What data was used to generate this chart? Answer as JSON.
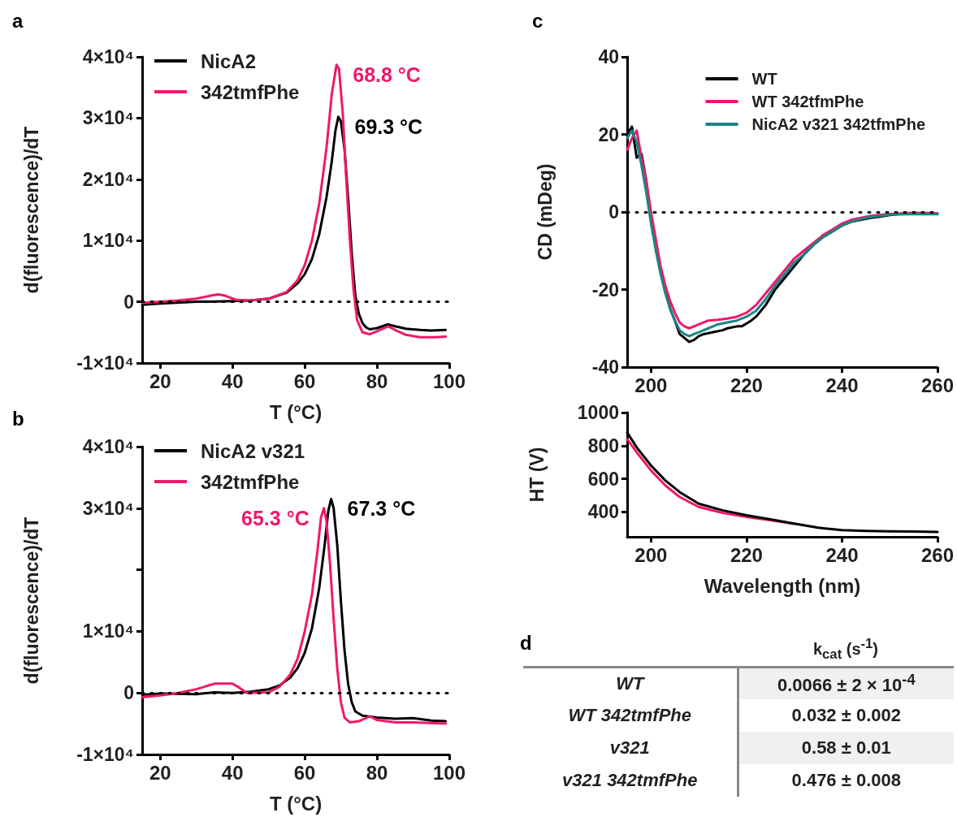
{
  "chart_data": [
    {
      "type": "line",
      "title": "a",
      "xlabel": "T (°C)",
      "ylabel": "d(fluorescence)/dT",
      "xlim": [
        15,
        100
      ],
      "xticks": [
        20,
        40,
        60,
        80,
        100
      ],
      "ylim": [
        -10000,
        40000
      ],
      "yticks": [
        {
          "value": -10000,
          "label": "-1×10⁴"
        },
        0,
        {
          "value": 10000,
          "label": "1×10⁴"
        },
        {
          "value": 20000,
          "label": "2×10⁴"
        },
        {
          "value": 30000,
          "label": "3×10⁴"
        },
        {
          "value": 40000,
          "label": "4×10⁴"
        }
      ],
      "legend": "top left",
      "series": [
        {
          "name": "NicA2",
          "color": "#000000",
          "x": [
            15,
            20,
            30,
            40,
            45,
            50,
            55,
            58,
            60,
            62,
            64,
            66,
            67.5,
            68.5,
            69.3,
            70,
            71,
            72,
            73,
            74,
            75,
            76,
            77,
            78,
            80,
            83,
            85,
            88,
            92,
            95,
            99
          ],
          "values": [
            -500,
            -300,
            0,
            100,
            200,
            500,
            1500,
            3000,
            4500,
            7000,
            11000,
            17000,
            23000,
            28000,
            30200,
            29500,
            25000,
            17000,
            8000,
            1000,
            -2000,
            -3500,
            -4200,
            -4500,
            -4300,
            -3700,
            -4000,
            -4400,
            -4600,
            -4700,
            -4600
          ]
        },
        {
          "name": "342tmfPhe",
          "color": "#f0186a",
          "x": [
            15,
            20,
            25,
            30,
            34,
            36,
            38,
            41,
            45,
            50,
            55,
            58,
            60,
            62,
            64,
            66,
            67.5,
            68.8,
            69.5,
            70.5,
            71.5,
            72.5,
            73.5,
            74.5,
            76,
            78,
            80,
            83,
            85,
            88,
            92,
            96,
            99
          ],
          "values": [
            -200,
            0,
            200,
            500,
            1000,
            1200,
            1000,
            300,
            200,
            500,
            1600,
            3500,
            6000,
            10000,
            16000,
            25000,
            34000,
            38700,
            38000,
            31000,
            20000,
            10000,
            2000,
            -3000,
            -5000,
            -5300,
            -4800,
            -4000,
            -4600,
            -5400,
            -5800,
            -5800,
            -5700
          ]
        }
      ],
      "ref_lines": [
        {
          "axis": "y",
          "value": 0,
          "color": "#000000",
          "line_style": "dotted"
        }
      ],
      "annotations": [
        {
          "text": "69.3 °C",
          "x": 69.3,
          "y": 30200
        },
        {
          "text": "68.8 °C",
          "x": 68.8,
          "y": 38700
        }
      ]
    },
    {
      "type": "line",
      "title": "b",
      "xlabel": "T (°C)",
      "ylabel": "d(fluorescence)/dT",
      "xlim": [
        15,
        100
      ],
      "xticks": [
        20,
        40,
        60,
        80,
        100
      ],
      "ylim": [
        -10000,
        40000
      ],
      "yticks": [
        {
          "value": -10000,
          "label": "-1×10⁴"
        },
        0,
        {
          "value": 10000,
          "label": "1×10⁴"
        },
        {
          "value": 20000,
          "label": null
        },
        {
          "value": 30000,
          "label": "3×10⁴"
        },
        {
          "value": 40000,
          "label": "4×10⁴"
        }
      ],
      "legend": "top left",
      "series": [
        {
          "name": "NicA2 v321",
          "color": "#000000",
          "x": [
            15,
            20,
            30,
            35,
            40,
            45,
            50,
            53,
            56,
            58,
            60,
            62,
            64,
            65.5,
            66.5,
            67.3,
            68,
            69,
            70,
            71,
            72,
            73,
            74,
            76,
            80,
            85,
            90,
            95,
            99
          ],
          "values": [
            -300,
            -100,
            -200,
            100,
            0,
            200,
            600,
            1200,
            2500,
            4000,
            6500,
            10500,
            17000,
            24000,
            29500,
            31500,
            30000,
            24000,
            15000,
            7000,
            1500,
            -1500,
            -3000,
            -3700,
            -4000,
            -4200,
            -4100,
            -4500,
            -4600
          ]
        },
        {
          "name": "342tmfPhe",
          "color": "#f0186a",
          "x": [
            15,
            20,
            25,
            30,
            35,
            40,
            42,
            44,
            50,
            53,
            56,
            58,
            60,
            62,
            63.5,
            64.5,
            65.3,
            66,
            67,
            68,
            69,
            70,
            71,
            72.5,
            75,
            78,
            80,
            85,
            90,
            99
          ],
          "values": [
            -700,
            -400,
            0,
            600,
            1500,
            1500,
            800,
            0,
            100,
            1000,
            3000,
            5500,
            10000,
            16000,
            23000,
            28500,
            30000,
            28000,
            21000,
            12000,
            4000,
            -1500,
            -4000,
            -4800,
            -4600,
            -3800,
            -4400,
            -4800,
            -4800,
            -5000
          ]
        }
      ],
      "ref_lines": [
        {
          "axis": "y",
          "value": 0,
          "color": "#000000",
          "line_style": "dotted"
        }
      ],
      "annotations": [
        {
          "text": "67.3 °C",
          "x": 67.3,
          "y": 31500
        },
        {
          "text": "65.3 °C",
          "x": 65.3,
          "y": 30000
        }
      ]
    },
    {
      "type": "line",
      "title": "c",
      "ylabel": "CD (mDeg)",
      "xlim": [
        195,
        260
      ],
      "xticks": [
        200,
        220,
        240,
        260
      ],
      "ylim": [
        -40,
        40
      ],
      "yticks": [
        -40,
        -20,
        0,
        20,
        40
      ],
      "legend": "top right",
      "series": [
        {
          "name": "WT",
          "color": "#000000",
          "x": [
            195,
            196,
            197,
            198,
            199,
            200,
            201,
            202,
            203,
            204,
            205,
            206,
            207,
            208,
            209,
            210,
            211,
            213,
            215,
            216,
            218,
            219,
            221,
            222,
            224,
            226,
            228,
            230,
            232,
            234,
            236,
            238,
            240,
            242,
            244,
            246,
            248,
            250,
            252,
            255,
            258,
            260
          ],
          "values": [
            20,
            22,
            14,
            15,
            8,
            -2,
            -8,
            -15,
            -20,
            -25,
            -28,
            -31.5,
            -32.5,
            -33.5,
            -33,
            -32,
            -31.5,
            -31,
            -30.5,
            -30,
            -29.5,
            -29.5,
            -28,
            -27,
            -24,
            -20,
            -17,
            -14,
            -11,
            -8.5,
            -6.5,
            -5,
            -3.5,
            -2.5,
            -2,
            -1.5,
            -1.2,
            -0.8,
            -0.5,
            -0.3,
            -0.3,
            -0.5
          ]
        },
        {
          "name": "WT 342tfmPhe",
          "color": "#f0186a",
          "x": [
            195,
            196,
            197,
            198,
            199,
            200,
            201,
            202,
            203,
            204,
            205,
            206,
            207,
            208,
            209,
            210,
            212,
            214,
            216,
            218,
            220,
            222,
            224,
            226,
            228,
            230,
            232,
            234,
            236,
            238,
            240,
            242,
            244,
            246,
            250,
            255,
            260
          ],
          "values": [
            16,
            19,
            21,
            14,
            8,
            0,
            -7,
            -14,
            -19,
            -23,
            -26,
            -28.5,
            -29.5,
            -30,
            -29.5,
            -29,
            -28,
            -27.8,
            -27.5,
            -27,
            -26,
            -24,
            -21,
            -18,
            -15,
            -12,
            -10,
            -8,
            -6,
            -4.5,
            -3,
            -2,
            -1.5,
            -1,
            -0.5,
            -0.2,
            -0.3
          ]
        },
        {
          "name": "NicA2 v321 342tfmPhe",
          "color": "#1a8585",
          "x": [
            195,
            196,
            197,
            198,
            199,
            200,
            201,
            202,
            203,
            204,
            205,
            206,
            207,
            208,
            209,
            210,
            212,
            214,
            216,
            218,
            220,
            222,
            224,
            226,
            228,
            230,
            232,
            234,
            236,
            238,
            240,
            242,
            244,
            246,
            250,
            255,
            260
          ],
          "values": [
            19,
            21,
            18,
            12,
            5,
            -3,
            -10,
            -16,
            -21,
            -25,
            -28,
            -30.5,
            -31.5,
            -32,
            -31.5,
            -31,
            -30,
            -29,
            -28.5,
            -28,
            -27,
            -25.5,
            -22.5,
            -19,
            -16,
            -13,
            -11,
            -8.5,
            -6.5,
            -5,
            -3.5,
            -2.5,
            -1.8,
            -1.3,
            -0.7,
            -0.5,
            -0.6
          ]
        }
      ],
      "ref_lines": [
        {
          "axis": "y",
          "value": 0,
          "color": "#000000",
          "line_style": "dotted"
        }
      ]
    },
    {
      "type": "line",
      "xlabel": "Wavelength (nm)",
      "ylabel": "HT (V)",
      "xlim": [
        195,
        260
      ],
      "xticks": [
        200,
        220,
        240,
        260
      ],
      "ylim": [
        250,
        1000
      ],
      "yticks": [
        400,
        600,
        800,
        1000
      ],
      "series": [
        {
          "color": "#f0186a",
          "x": [
            195,
            197,
            200,
            203,
            206,
            210,
            215,
            220,
            225,
            230
          ],
          "values": [
            840,
            760,
            650,
            560,
            490,
            430,
            395,
            370,
            350,
            328
          ]
        },
        {
          "color": "#000000",
          "x": [
            195,
            197,
            200,
            203,
            206,
            210,
            215,
            220,
            225,
            230,
            235,
            240,
            245,
            250,
            255,
            260
          ],
          "values": [
            880,
            790,
            680,
            590,
            520,
            450,
            410,
            380,
            355,
            330,
            305,
            290,
            285,
            283,
            282,
            280
          ]
        }
      ]
    },
    {
      "type": "other",
      "title": "d",
      "xlabel": "k$_{cat}$ (s$^{-1}$)",
      "categories": [
        "WT",
        "WT 342tmfPhe",
        "v321",
        "v321 342tmfPhe"
      ],
      "value_labels": [
        "0.0066 ± 2 × 10$^{-4}$",
        "0.032 ± 0.002",
        "0.58 ± 0.01",
        "0.476 ± 0.008"
      ]
    }
  ]
}
